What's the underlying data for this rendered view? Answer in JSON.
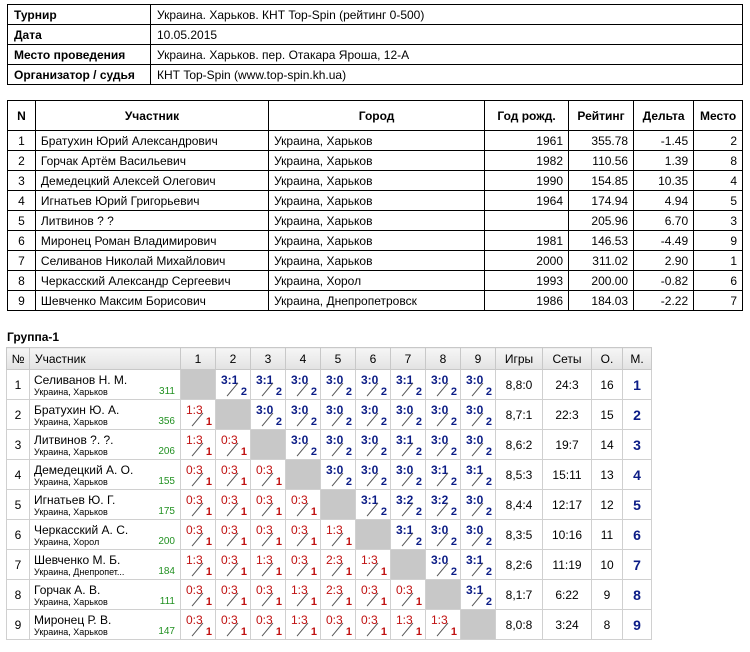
{
  "info": [
    {
      "label": "Турнир",
      "value": "Украина. Харьков. КНТ Top-Spin (рейтинг 0-500)"
    },
    {
      "label": "Дата",
      "value": "10.05.2015"
    },
    {
      "label": "Место проведения",
      "value": "Украина. Харьков. пер. Отакара Яроша, 12-А"
    },
    {
      "label": "Организатор / судья",
      "value": "КНТ Top-Spin (www.top-spin.kh.ua)"
    }
  ],
  "participants": {
    "headers": [
      "N",
      "Участник",
      "Город",
      "Год рожд.",
      "Рейтинг",
      "Дельта",
      "Место"
    ],
    "rows": [
      [
        "1",
        "Братухин Юрий Александрович",
        "Украина, Харьков",
        "1961",
        "355.78",
        "-1.45",
        "2"
      ],
      [
        "2",
        "Горчак Артём Васильевич",
        "Украина, Харьков",
        "1982",
        "110.56",
        "1.39",
        "8"
      ],
      [
        "3",
        "Демедецкий Алексей Олегович",
        "Украина, Харьков",
        "1990",
        "154.85",
        "10.35",
        "4"
      ],
      [
        "4",
        "Игнатьев Юрий Григорьевич",
        "Украина, Харьков",
        "1964",
        "174.94",
        "4.94",
        "5"
      ],
      [
        "5",
        "Литвинов ? ?",
        "Украина, Харьков",
        "",
        "205.96",
        "6.70",
        "3"
      ],
      [
        "6",
        "Миронец Роман Владимирович",
        "Украина, Харьков",
        "1981",
        "146.53",
        "-4.49",
        "9"
      ],
      [
        "7",
        "Селиванов Николай Михайлович",
        "Украина, Харьков",
        "2000",
        "311.02",
        "2.90",
        "1"
      ],
      [
        "8",
        "Черкасский Александр Сергеевич",
        "Украина, Хорол",
        "1993",
        "200.00",
        "-0.82",
        "6"
      ],
      [
        "9",
        "Шевченко Максим Борисович",
        "Украина, Днепропетровск",
        "1986",
        "184.03",
        "-2.22",
        "7"
      ]
    ]
  },
  "group": {
    "title": "Группа-1",
    "headers": {
      "no": "№",
      "player": "Участник",
      "cols": [
        "1",
        "2",
        "3",
        "4",
        "5",
        "6",
        "7",
        "8",
        "9"
      ],
      "games": "Игры",
      "sets": "Сеты",
      "points": "О.",
      "place": "М."
    },
    "rows": [
      {
        "no": "1",
        "name": "Селиванов Н. М.",
        "city": "Украина, Харьков",
        "rating": "311",
        "cells": [
          null,
          "3:1",
          "3:1",
          "3:0",
          "3:0",
          "3:0",
          "3:1",
          "3:0",
          "3:0"
        ],
        "games": "8,8:0",
        "sets": "24:3",
        "points": "16",
        "place": "1"
      },
      {
        "no": "2",
        "name": "Братухин Ю. А.",
        "city": "Украина, Харьков",
        "rating": "356",
        "cells": [
          "1:3",
          null,
          "3:0",
          "3:0",
          "3:0",
          "3:0",
          "3:0",
          "3:0",
          "3:0"
        ],
        "games": "8,7:1",
        "sets": "22:3",
        "points": "15",
        "place": "2"
      },
      {
        "no": "3",
        "name": "Литвинов ?. ?.",
        "city": "Украина, Харьков",
        "rating": "206",
        "cells": [
          "1:3",
          "0:3",
          null,
          "3:0",
          "3:0",
          "3:0",
          "3:1",
          "3:0",
          "3:0"
        ],
        "games": "8,6:2",
        "sets": "19:7",
        "points": "14",
        "place": "3"
      },
      {
        "no": "4",
        "name": "Демедецкий А. О.",
        "city": "Украина, Харьков",
        "rating": "155",
        "cells": [
          "0:3",
          "0:3",
          "0:3",
          null,
          "3:0",
          "3:0",
          "3:0",
          "3:1",
          "3:1"
        ],
        "games": "8,5:3",
        "sets": "15:11",
        "points": "13",
        "place": "4"
      },
      {
        "no": "5",
        "name": "Игнатьев Ю. Г.",
        "city": "Украина, Харьков",
        "rating": "175",
        "cells": [
          "0:3",
          "0:3",
          "0:3",
          "0:3",
          null,
          "3:1",
          "3:2",
          "3:2",
          "3:0"
        ],
        "games": "8,4:4",
        "sets": "12:17",
        "points": "12",
        "place": "5"
      },
      {
        "no": "6",
        "name": "Черкасский А. С.",
        "city": "Украина, Хорол",
        "rating": "200",
        "cells": [
          "0:3",
          "0:3",
          "0:3",
          "0:3",
          "1:3",
          null,
          "3:1",
          "3:0",
          "3:0"
        ],
        "games": "8,3:5",
        "sets": "10:16",
        "points": "11",
        "place": "6"
      },
      {
        "no": "7",
        "name": "Шевченко М. Б.",
        "city": "Украина, Днепропет...",
        "rating": "184",
        "cells": [
          "1:3",
          "0:3",
          "1:3",
          "0:3",
          "2:3",
          "1:3",
          null,
          "3:0",
          "3:1"
        ],
        "games": "8,2:6",
        "sets": "11:19",
        "points": "10",
        "place": "7"
      },
      {
        "no": "8",
        "name": "Горчак А. В.",
        "city": "Украина, Харьков",
        "rating": "111",
        "cells": [
          "0:3",
          "0:3",
          "0:3",
          "1:3",
          "2:3",
          "0:3",
          "0:3",
          null,
          "3:1"
        ],
        "games": "8,1:7",
        "sets": "6:22",
        "points": "9",
        "place": "8"
      },
      {
        "no": "9",
        "name": "Миронец Р. В.",
        "city": "Украина, Харьков",
        "rating": "147",
        "cells": [
          "0:3",
          "0:3",
          "0:3",
          "1:3",
          "0:3",
          "0:3",
          "1:3",
          "1:3",
          null
        ],
        "games": "8,0:8",
        "sets": "3:24",
        "points": "8",
        "place": "9"
      }
    ]
  },
  "colors": {
    "win": "#0b1c86",
    "lose": "#c01010",
    "rating": "#209020",
    "self": "#c8c8c8"
  }
}
